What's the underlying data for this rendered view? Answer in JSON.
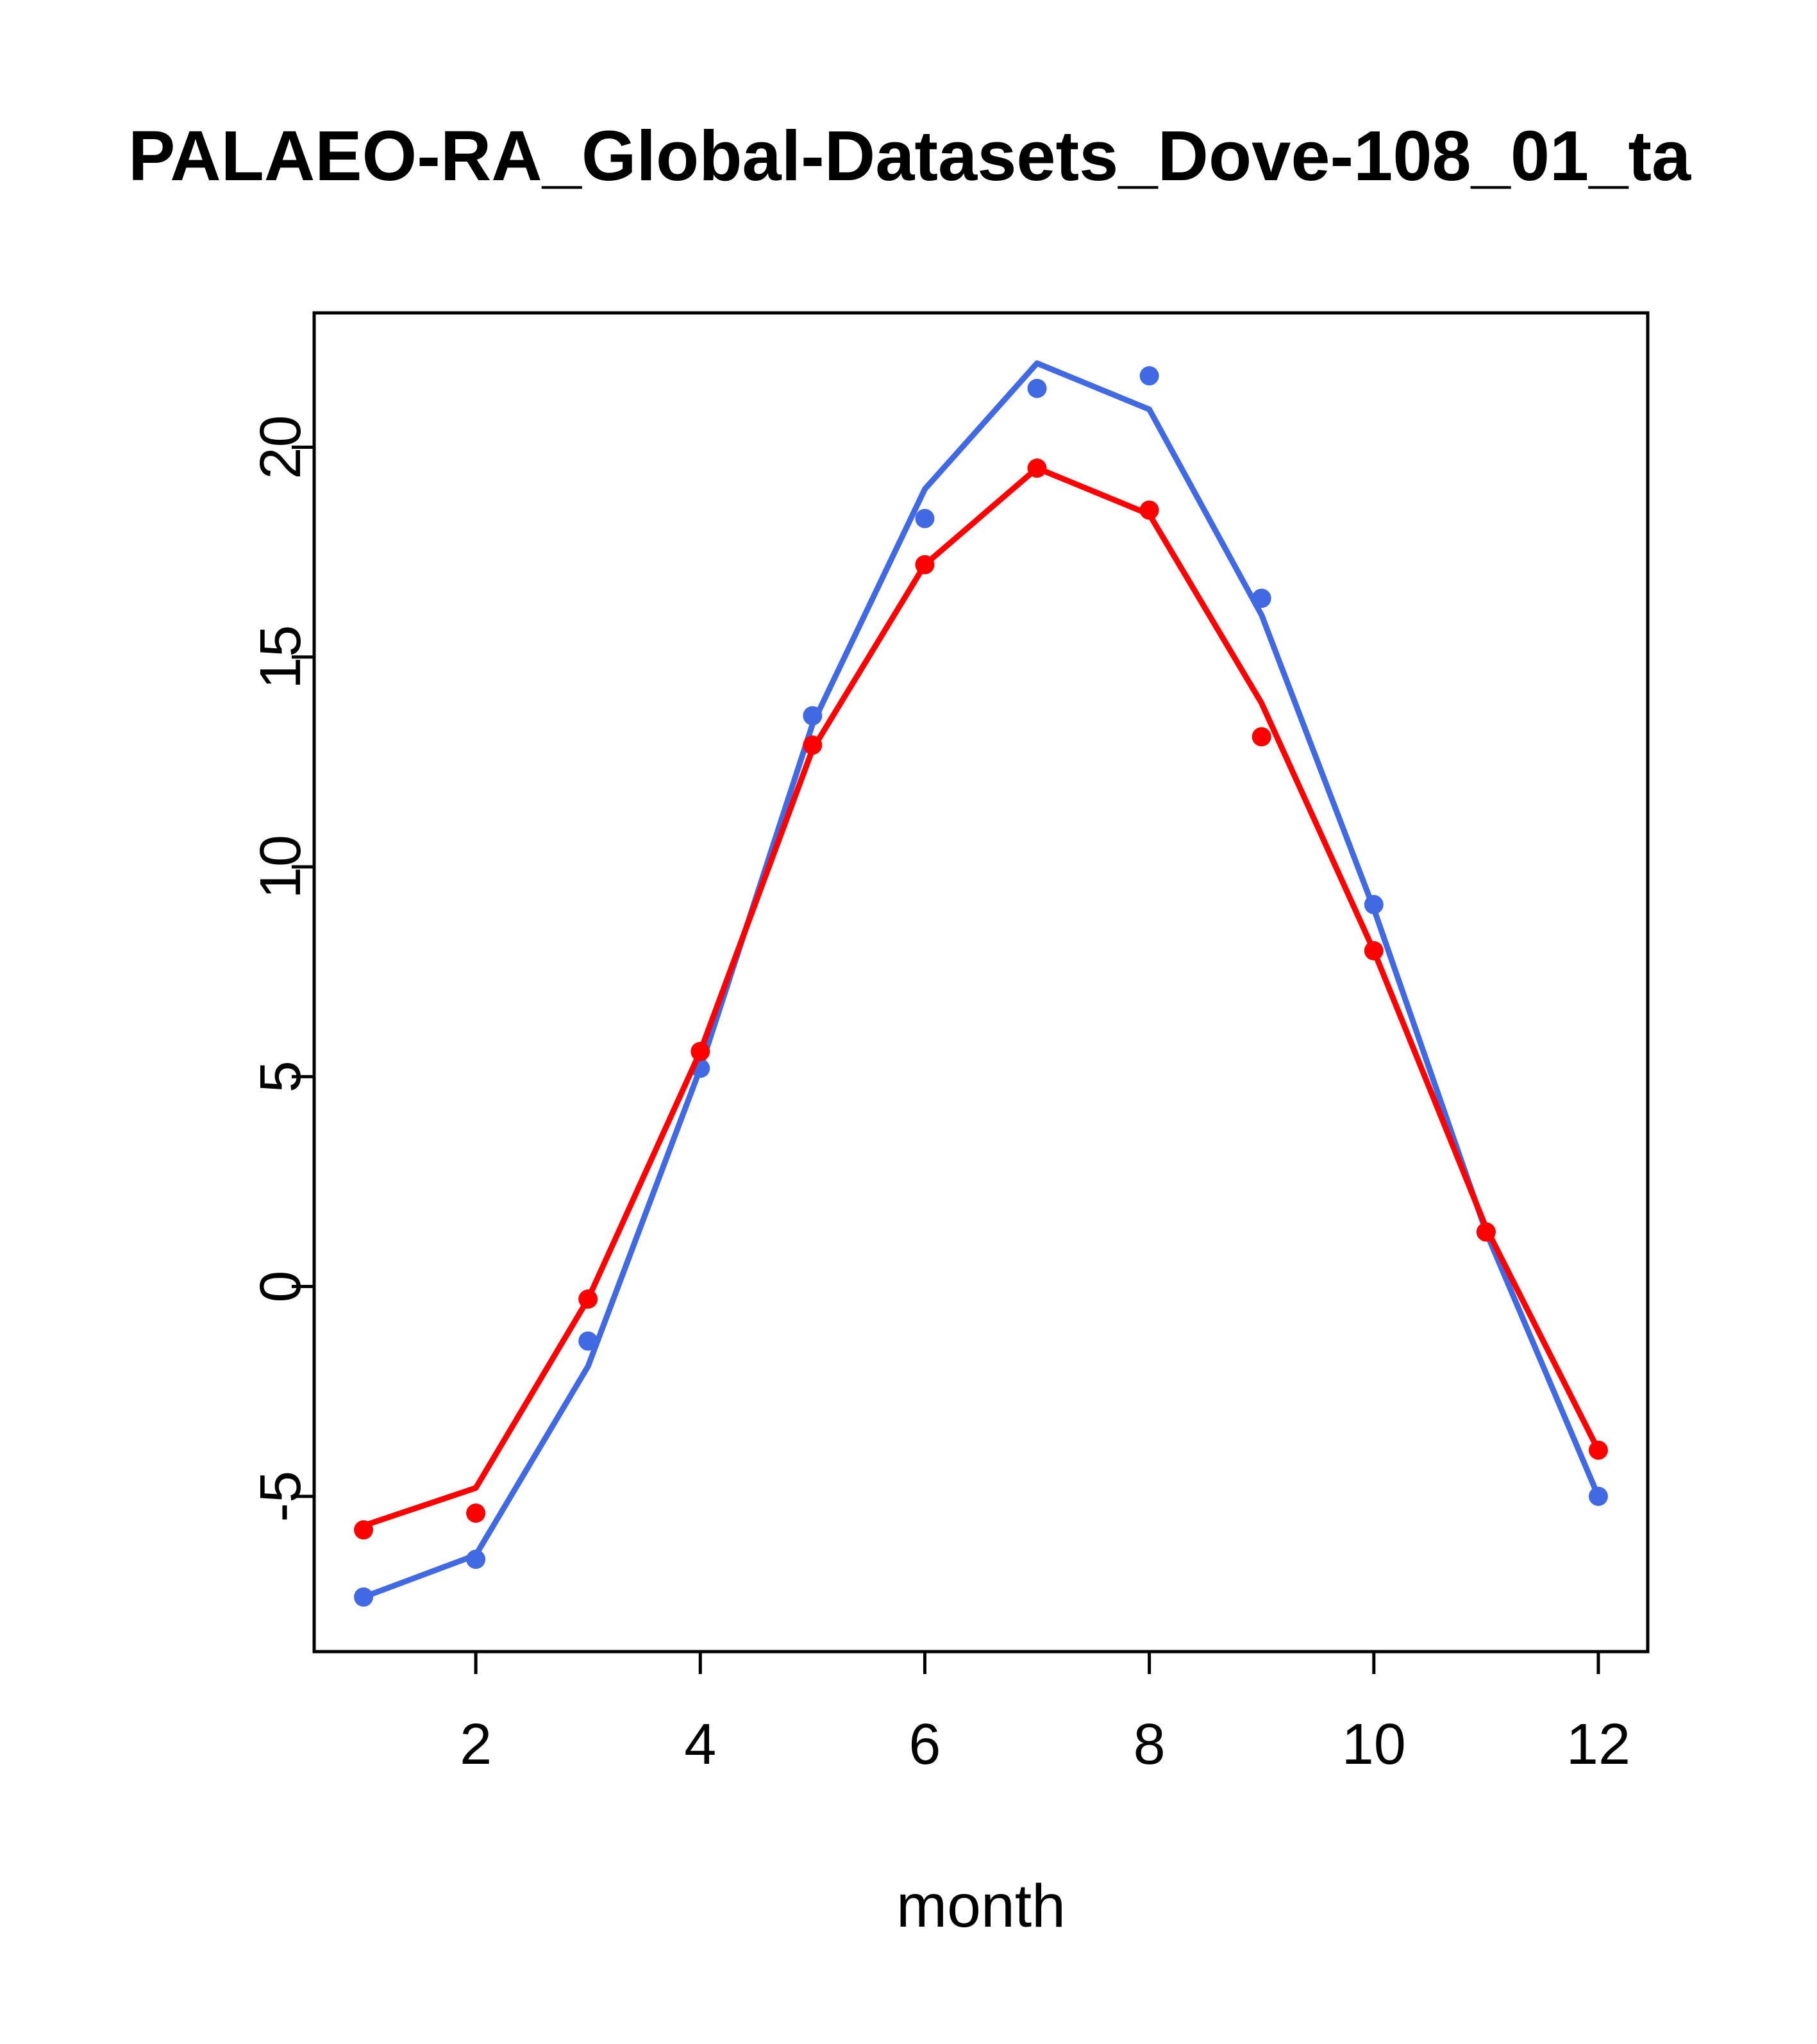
{
  "chart_data": {
    "type": "line",
    "title": "PALAEO-RA_Global-Datasets_Dove-108_01_ta",
    "xlabel": "month",
    "ylabel": "",
    "x": [
      1,
      2,
      3,
      4,
      5,
      6,
      7,
      8,
      9,
      10,
      11,
      12
    ],
    "xticks": [
      2,
      4,
      6,
      8,
      10,
      12
    ],
    "yticks": [
      -5,
      0,
      5,
      10,
      15,
      20
    ],
    "xlim": [
      0.56,
      12.44
    ],
    "ylim": [
      -8.7,
      23.2
    ],
    "grid": false,
    "series": [
      {
        "name": "series-blue",
        "color": "#4169E1",
        "line": [
          -7.4,
          -6.4,
          -1.9,
          5.2,
          13.4,
          19.0,
          22.0,
          20.9,
          16.0,
          9.0,
          1.3,
          -5.0
        ],
        "points": [
          -7.4,
          -6.5,
          -1.3,
          5.2,
          13.6,
          18.3,
          21.4,
          21.7,
          16.4,
          9.1,
          1.3,
          -5.0
        ]
      },
      {
        "name": "series-red",
        "color": "#FF0000",
        "line": [
          -5.7,
          -4.8,
          -0.3,
          5.6,
          12.8,
          17.2,
          19.5,
          18.4,
          13.9,
          8.0,
          1.4,
          -3.9
        ],
        "points": [
          -5.8,
          -5.4,
          -0.3,
          5.6,
          12.9,
          17.2,
          19.5,
          18.5,
          13.1,
          8.0,
          1.3,
          -3.9
        ]
      }
    ],
    "style": {
      "axis_color": "#000000",
      "box_stroke_width": 5,
      "tick_length": 35,
      "line_width": 9,
      "point_radius": 15,
      "tick_font_size": 90,
      "label_font_size": 95
    }
  }
}
